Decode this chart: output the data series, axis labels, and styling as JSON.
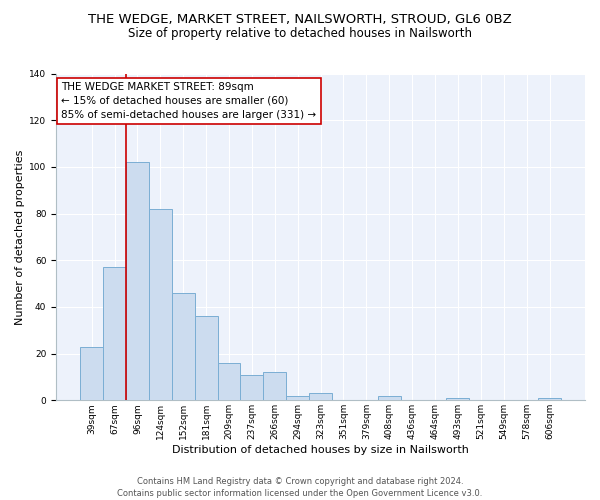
{
  "title": "THE WEDGE, MARKET STREET, NAILSWORTH, STROUD, GL6 0BZ",
  "subtitle": "Size of property relative to detached houses in Nailsworth",
  "xlabel": "Distribution of detached houses by size in Nailsworth",
  "ylabel": "Number of detached properties",
  "bar_labels": [
    "39sqm",
    "67sqm",
    "96sqm",
    "124sqm",
    "152sqm",
    "181sqm",
    "209sqm",
    "237sqm",
    "266sqm",
    "294sqm",
    "323sqm",
    "351sqm",
    "379sqm",
    "408sqm",
    "436sqm",
    "464sqm",
    "493sqm",
    "521sqm",
    "549sqm",
    "578sqm",
    "606sqm"
  ],
  "bar_values": [
    23,
    57,
    102,
    82,
    46,
    36,
    16,
    11,
    12,
    2,
    3,
    0,
    0,
    2,
    0,
    0,
    1,
    0,
    0,
    0,
    1
  ],
  "bar_color": "#ccdcef",
  "bar_edge_color": "#7aaed4",
  "vline_color": "#cc0000",
  "vline_x_index": 1.5,
  "ylim": [
    0,
    140
  ],
  "yticks": [
    0,
    20,
    40,
    60,
    80,
    100,
    120,
    140
  ],
  "annotation_title": "THE WEDGE MARKET STREET: 89sqm",
  "annotation_line1": "← 15% of detached houses are smaller (60)",
  "annotation_line2": "85% of semi-detached houses are larger (331) →",
  "annotation_box_color": "#ffffff",
  "annotation_box_edge": "#cc0000",
  "footer_line1": "Contains HM Land Registry data © Crown copyright and database right 2024.",
  "footer_line2": "Contains public sector information licensed under the Open Government Licence v3.0.",
  "title_fontsize": 9.5,
  "subtitle_fontsize": 8.5,
  "axis_label_fontsize": 8,
  "tick_fontsize": 6.5,
  "annotation_fontsize": 7.5,
  "footer_fontsize": 6,
  "bg_color": "#edf2fb",
  "grid_color": "#ffffff"
}
